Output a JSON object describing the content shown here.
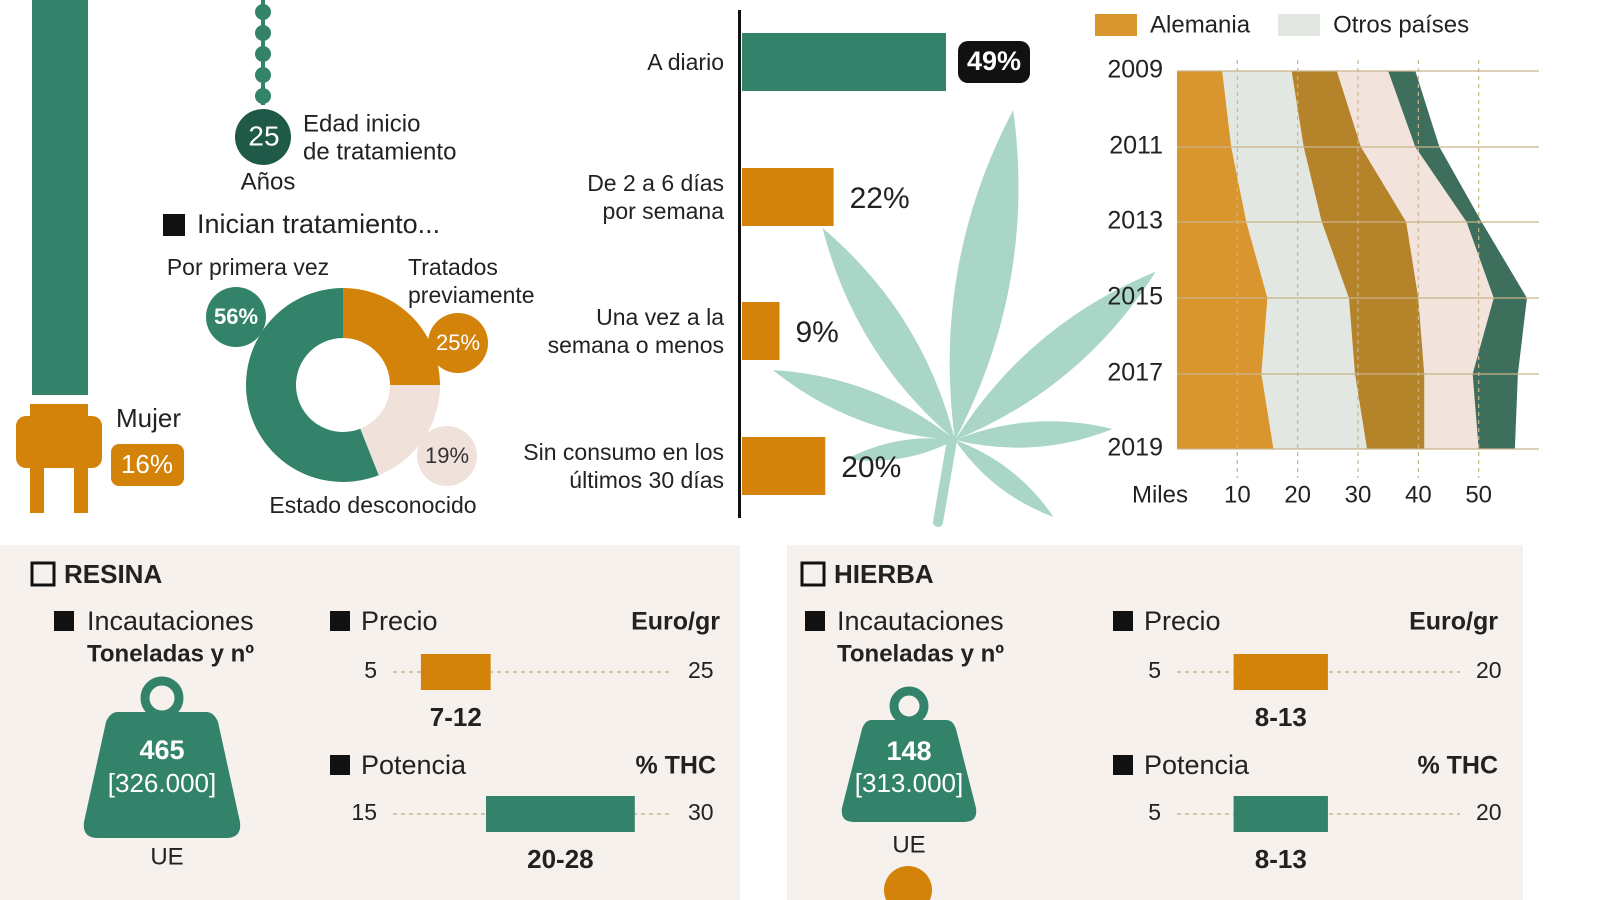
{
  "profile": {
    "age": "25",
    "age_unit": "Años",
    "age_label": [
      "Edad inicio",
      "de tratamiento"
    ],
    "woman_label": "Mujer",
    "woman_value": "16%"
  },
  "sections": [
    {
      "title": "RESINA",
      "seizures": {
        "title": "Incautaciones",
        "subtitle": "Toneladas y nº",
        "value": "465",
        "count": "[326.000]",
        "region": "UE"
      }
    },
    {
      "title": "HIERBA",
      "seizures": {
        "title": "Incautaciones",
        "subtitle": "Toneladas y nº",
        "value": "148",
        "count": "[313.000]",
        "region": "UE"
      }
    }
  ],
  "chart_data": [
    {
      "type": "pie",
      "title": "Inician tratamiento...",
      "donut": true,
      "categories": [
        "Tratados previamente",
        "Estado desconocido",
        "Por primera vez"
      ],
      "values": [
        25,
        19,
        56
      ],
      "value_labels": [
        "25%",
        "19%",
        "56%"
      ],
      "colors": [
        "#d4830a",
        "#f0e2da",
        "#33836b"
      ]
    },
    {
      "type": "bar",
      "orientation": "horizontal",
      "categories": [
        "A diario",
        "De 2 a 6 días por semana",
        "Una vez a la semana o menos",
        "Sin consumo en los últimos 30 días"
      ],
      "values": [
        49,
        22,
        9,
        20
      ],
      "value_labels": [
        "49%",
        "22%",
        "9%",
        "20%"
      ],
      "colors": [
        "#33836b",
        "#d4830a",
        "#d4830a",
        "#d4830a"
      ]
    },
    {
      "type": "area",
      "stacked": true,
      "orientation": "horizontal",
      "categories": [
        "2009",
        "2011",
        "2013",
        "2015",
        "2017",
        "2019"
      ],
      "series": [
        {
          "name": "Alemania",
          "color": "#d9962e",
          "values": [
            7.5,
            9,
            11.5,
            15,
            14,
            16
          ]
        },
        {
          "name": "Otros países",
          "color": "#e3e7e1",
          "values": [
            11.5,
            12,
            12.5,
            13.5,
            15.5,
            15.5
          ]
        },
        {
          "color": "#b5842a",
          "values": [
            7.5,
            9.5,
            14,
            11.5,
            11.5,
            9.5
          ]
        },
        {
          "color": "#f2e4dc",
          "values": [
            8.5,
            9,
            10,
            12.5,
            8,
            9
          ]
        },
        {
          "color": "#3e6f5c",
          "values": [
            4.5,
            4,
            2.5,
            5.5,
            7.5,
            6
          ]
        }
      ],
      "xlabel": "Miles",
      "xlim": [
        0,
        60
      ],
      "xticks": [
        10,
        20,
        30,
        40,
        50
      ],
      "grid": true
    },
    {
      "type": "range",
      "title": "Precio",
      "unit": "Euro/gr",
      "xlim": [
        5,
        25
      ],
      "xticks": [
        5,
        25
      ],
      "values": [
        7,
        12
      ],
      "value_label": "7-12",
      "color": "#d4830a"
    },
    {
      "type": "range",
      "title": "Potencia",
      "unit": "% THC",
      "xlim": [
        15,
        30
      ],
      "xticks": [
        15,
        30
      ],
      "values": [
        20,
        28
      ],
      "value_label": "20-28",
      "color": "#33836b"
    },
    {
      "type": "range",
      "title": "Precio",
      "unit": "Euro/gr",
      "xlim": [
        5,
        20
      ],
      "xticks": [
        5,
        20
      ],
      "values": [
        8,
        13
      ],
      "value_label": "8-13",
      "color": "#d4830a"
    },
    {
      "type": "range",
      "title": "Potencia",
      "unit": "% THC",
      "xlim": [
        5,
        20
      ],
      "xticks": [
        5,
        20
      ],
      "values": [
        8,
        13
      ],
      "value_label": "8-13",
      "color": "#33836b"
    }
  ]
}
